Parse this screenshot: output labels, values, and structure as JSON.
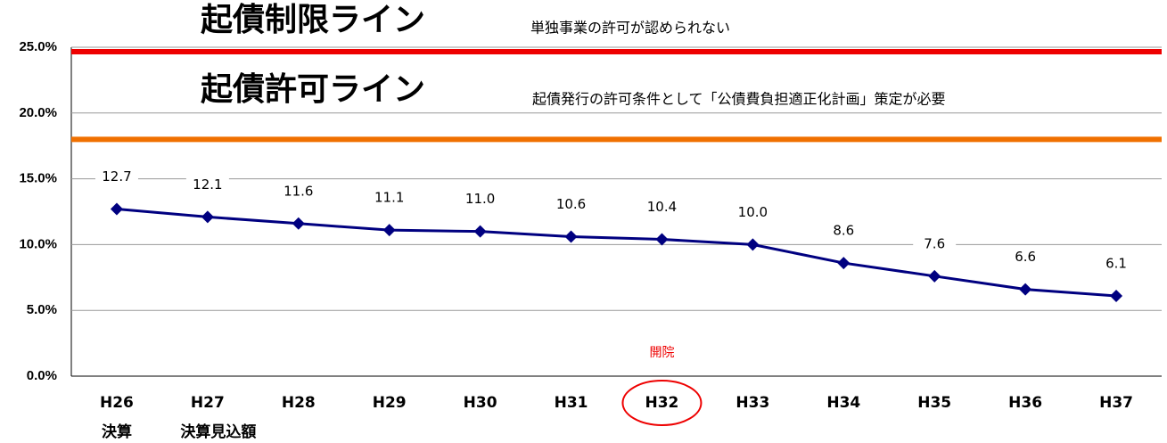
{
  "chart_data": {
    "type": "line",
    "categories": [
      "H26",
      "H27",
      "H28",
      "H29",
      "H30",
      "H31",
      "H32",
      "H33",
      "H34",
      "H35",
      "H36",
      "H37"
    ],
    "category_notes": [
      "決算",
      "決算見込額",
      null,
      null,
      null,
      null,
      null,
      null,
      null,
      null,
      null,
      null
    ],
    "series": [
      {
        "name": null,
        "color": "#000080",
        "values": [
          12.7,
          12.1,
          11.6,
          11.1,
          11.0,
          10.6,
          10.4,
          10.0,
          8.6,
          7.6,
          6.6,
          6.1
        ],
        "value_labels": [
          "12.7",
          "12.1",
          "11.6",
          "11.1",
          "11.0",
          "10.6",
          "10.4",
          "10.0",
          "8.6",
          "7.6",
          "6.6",
          "6.1"
        ]
      }
    ],
    "ylim": [
      0,
      25
    ],
    "yticks": [
      {
        "value": 0,
        "label": "0.0%"
      },
      {
        "value": 5,
        "label": "5.0%"
      },
      {
        "value": 10,
        "label": "10.0%"
      },
      {
        "value": 15,
        "label": "15.0%"
      },
      {
        "value": 20,
        "label": "20.0%"
      },
      {
        "value": 25,
        "label": "25.0%"
      }
    ],
    "grid": true,
    "reference_lines": [
      {
        "label": "起債制限ライン",
        "note": "単独事業の許可が認められない",
        "value": 25,
        "color": "#ee0000"
      },
      {
        "label": "起債許可ライン",
        "note": "起債発行の許可条件として「公債費負担適正化計画」策定が必要",
        "value": 18,
        "color": "#f07000"
      }
    ],
    "annotations": [
      {
        "text": "開院",
        "category": "H32",
        "color": "#ee0000"
      }
    ]
  }
}
